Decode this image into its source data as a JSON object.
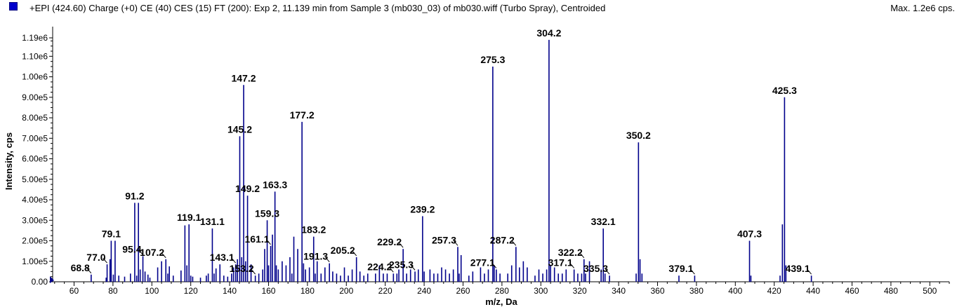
{
  "header": {
    "title": "+EPI (424.60) Charge (+0) CE (40) CES (15) FT (200): Exp 2, 11.139 min from Sample 3 (mb030_03) of mb030.wiff (Turbo Spray), Centroided",
    "max_label": "Max. 1.2e6 cps."
  },
  "chart_data": {
    "type": "bar",
    "color": "#00008b",
    "xlabel": "m/z, Da",
    "ylabel": "Intensity, cps",
    "xlim": [
      49,
      510
    ],
    "ylim": [
      0,
      1190000.0
    ],
    "x_ticks": [
      {
        "value": 60,
        "label": "60"
      },
      {
        "value": 80,
        "label": "80"
      },
      {
        "value": 100,
        "label": "100"
      },
      {
        "value": 120,
        "label": "120"
      },
      {
        "value": 140,
        "label": "140"
      },
      {
        "value": 160,
        "label": "160"
      },
      {
        "value": 180,
        "label": "180"
      },
      {
        "value": 200,
        "label": "200"
      },
      {
        "value": 220,
        "label": "220"
      },
      {
        "value": 240,
        "label": "240"
      },
      {
        "value": 260,
        "label": "260"
      },
      {
        "value": 280,
        "label": "280"
      },
      {
        "value": 300,
        "label": "300"
      },
      {
        "value": 320,
        "label": "320"
      },
      {
        "value": 340,
        "label": "340"
      },
      {
        "value": 360,
        "label": "360"
      },
      {
        "value": 380,
        "label": "380"
      },
      {
        "value": 400,
        "label": "400"
      },
      {
        "value": 420,
        "label": "420"
      },
      {
        "value": 440,
        "label": "440"
      },
      {
        "value": 460,
        "label": "460"
      },
      {
        "value": 480,
        "label": "480"
      },
      {
        "value": 500,
        "label": "500"
      }
    ],
    "y_ticks": [
      {
        "value": 0,
        "label": "0.00"
      },
      {
        "value": 100000,
        "label": "1.00e5"
      },
      {
        "value": 200000,
        "label": "2.00e5"
      },
      {
        "value": 300000,
        "label": "3.00e5"
      },
      {
        "value": 400000,
        "label": "4.00e5"
      },
      {
        "value": 500000,
        "label": "5.00e5"
      },
      {
        "value": 600000,
        "label": "6.00e5"
      },
      {
        "value": 700000,
        "label": "7.00e5"
      },
      {
        "value": 800000,
        "label": "8.00e5"
      },
      {
        "value": 900000,
        "label": "9.00e5"
      },
      {
        "value": 1000000,
        "label": "1.00e6"
      },
      {
        "value": 1100000,
        "label": "1.10e6"
      },
      {
        "value": 1190000,
        "label": "1.19e6"
      }
    ],
    "peaks": [
      [
        68.8,
        35000
      ],
      [
        76.5,
        20000
      ],
      [
        77.0,
        85000
      ],
      [
        78.5,
        110000
      ],
      [
        79.1,
        200000
      ],
      [
        80.2,
        35000
      ],
      [
        81.1,
        200000
      ],
      [
        83.0,
        30000
      ],
      [
        86.0,
        25000
      ],
      [
        89.0,
        40000
      ],
      [
        91.2,
        385000
      ],
      [
        92.2,
        30000
      ],
      [
        93.1,
        385000
      ],
      [
        94.0,
        60000
      ],
      [
        95.4,
        125000
      ],
      [
        96.5,
        50000
      ],
      [
        98.0,
        35000
      ],
      [
        99.0,
        20000
      ],
      [
        103.0,
        70000
      ],
      [
        105.0,
        100000
      ],
      [
        107.2,
        110000
      ],
      [
        108.2,
        40000
      ],
      [
        109.0,
        75000
      ],
      [
        111.0,
        30000
      ],
      [
        115.0,
        55000
      ],
      [
        117.0,
        275000
      ],
      [
        118.0,
        80000
      ],
      [
        119.1,
        280000
      ],
      [
        120.0,
        30000
      ],
      [
        121.0,
        25000
      ],
      [
        125.0,
        20000
      ],
      [
        128.0,
        30000
      ],
      [
        129.0,
        40000
      ],
      [
        131.1,
        260000
      ],
      [
        132.0,
        40000
      ],
      [
        133.0,
        65000
      ],
      [
        135.0,
        85000
      ],
      [
        137.0,
        30000
      ],
      [
        139.0,
        25000
      ],
      [
        141.0,
        40000
      ],
      [
        142.0,
        70000
      ],
      [
        143.1,
        85000
      ],
      [
        144.0,
        110000
      ],
      [
        145.2,
        710000
      ],
      [
        146.2,
        120000
      ],
      [
        147.2,
        960000
      ],
      [
        148.2,
        100000
      ],
      [
        149.2,
        420000
      ],
      [
        151.0,
        85000
      ],
      [
        153.2,
        30000
      ],
      [
        155.0,
        40000
      ],
      [
        157.0,
        60000
      ],
      [
        158.0,
        160000
      ],
      [
        159.3,
        300000
      ],
      [
        160.0,
        80000
      ],
      [
        161.1,
        175000
      ],
      [
        162.0,
        230000
      ],
      [
        163.3,
        440000
      ],
      [
        164.0,
        80000
      ],
      [
        165.0,
        60000
      ],
      [
        167.0,
        100000
      ],
      [
        169.0,
        80000
      ],
      [
        171.0,
        120000
      ],
      [
        172.0,
        40000
      ],
      [
        173.0,
        220000
      ],
      [
        175.0,
        160000
      ],
      [
        177.2,
        780000
      ],
      [
        178.0,
        90000
      ],
      [
        179.0,
        60000
      ],
      [
        181.0,
        70000
      ],
      [
        183.2,
        220000
      ],
      [
        184.0,
        40000
      ],
      [
        185.0,
        100000
      ],
      [
        187.0,
        40000
      ],
      [
        189.0,
        70000
      ],
      [
        191.3,
        90000
      ],
      [
        193.0,
        50000
      ],
      [
        195.0,
        40000
      ],
      [
        197.0,
        30000
      ],
      [
        199.0,
        70000
      ],
      [
        201.0,
        30000
      ],
      [
        203.0,
        60000
      ],
      [
        205.2,
        120000
      ],
      [
        207.0,
        50000
      ],
      [
        209.0,
        30000
      ],
      [
        211.0,
        40000
      ],
      [
        215.0,
        40000
      ],
      [
        217.0,
        80000
      ],
      [
        219.0,
        40000
      ],
      [
        221.0,
        40000
      ],
      [
        224.2,
        40000
      ],
      [
        226.0,
        40000
      ],
      [
        227.0,
        60000
      ],
      [
        229.2,
        160000
      ],
      [
        231.0,
        40000
      ],
      [
        233.0,
        60000
      ],
      [
        235.3,
        50000
      ],
      [
        237.0,
        60000
      ],
      [
        239.2,
        320000
      ],
      [
        240.0,
        50000
      ],
      [
        243.0,
        60000
      ],
      [
        245.0,
        40000
      ],
      [
        247.0,
        40000
      ],
      [
        249.0,
        70000
      ],
      [
        251.0,
        60000
      ],
      [
        253.0,
        40000
      ],
      [
        255.0,
        60000
      ],
      [
        257.3,
        170000
      ],
      [
        258.0,
        40000
      ],
      [
        259.0,
        130000
      ],
      [
        263.0,
        30000
      ],
      [
        265.0,
        50000
      ],
      [
        269.0,
        70000
      ],
      [
        271.0,
        40000
      ],
      [
        273.0,
        60000
      ],
      [
        275.3,
        1050000
      ],
      [
        276.0,
        80000
      ],
      [
        277.1,
        60000
      ],
      [
        279.0,
        40000
      ],
      [
        283.0,
        40000
      ],
      [
        285.0,
        80000
      ],
      [
        287.2,
        170000
      ],
      [
        289.0,
        70000
      ],
      [
        291.0,
        100000
      ],
      [
        293.0,
        70000
      ],
      [
        297.0,
        30000
      ],
      [
        299.0,
        60000
      ],
      [
        301.0,
        40000
      ],
      [
        303.0,
        60000
      ],
      [
        304.2,
        1180000
      ],
      [
        305.0,
        80000
      ],
      [
        307.0,
        70000
      ],
      [
        309.0,
        40000
      ],
      [
        311.0,
        40000
      ],
      [
        313.0,
        60000
      ],
      [
        317.1,
        60000
      ],
      [
        319.0,
        40000
      ],
      [
        321.0,
        40000
      ],
      [
        322.2,
        110000
      ],
      [
        323.0,
        40000
      ],
      [
        325.0,
        100000
      ],
      [
        331.0,
        60000
      ],
      [
        332.1,
        260000
      ],
      [
        333.0,
        40000
      ],
      [
        335.3,
        30000
      ],
      [
        349.0,
        40000
      ],
      [
        350.2,
        680000
      ],
      [
        351.0,
        110000
      ],
      [
        352.0,
        40000
      ],
      [
        371.0,
        30000
      ],
      [
        379.1,
        30000
      ],
      [
        407.3,
        200000
      ],
      [
        408.0,
        30000
      ],
      [
        423.0,
        30000
      ],
      [
        424.2,
        280000
      ],
      [
        425.3,
        900000
      ],
      [
        426.0,
        80000
      ],
      [
        439.1,
        30000
      ]
    ],
    "labels": [
      {
        "text": "68.8",
        "x": 68.8,
        "y": 35000
      },
      {
        "text": "77.0",
        "x": 77.0,
        "y": 85000
      },
      {
        "text": "79.1",
        "x": 79.1,
        "y": 200000
      },
      {
        "text": "91.2",
        "x": 91.2,
        "y": 385000
      },
      {
        "text": "95.4",
        "x": 95.4,
        "y": 125000
      },
      {
        "text": "107.2",
        "x": 107.2,
        "y": 110000
      },
      {
        "text": "119.1",
        "x": 119.1,
        "y": 280000
      },
      {
        "text": "131.1",
        "x": 131.1,
        "y": 260000
      },
      {
        "text": "143.1",
        "x": 143.1,
        "y": 85000
      },
      {
        "text": "145.2",
        "x": 145.2,
        "y": 710000
      },
      {
        "text": "147.2",
        "x": 147.2,
        "y": 960000
      },
      {
        "text": "149.2",
        "x": 149.2,
        "y": 420000
      },
      {
        "text": "153.2",
        "x": 153.2,
        "y": 30000
      },
      {
        "text": "159.3",
        "x": 159.3,
        "y": 300000
      },
      {
        "text": "161.1",
        "x": 161.1,
        "y": 175000
      },
      {
        "text": "163.3",
        "x": 163.3,
        "y": 440000
      },
      {
        "text": "177.2",
        "x": 177.2,
        "y": 780000
      },
      {
        "text": "183.2",
        "x": 183.2,
        "y": 220000
      },
      {
        "text": "191.3",
        "x": 191.3,
        "y": 90000
      },
      {
        "text": "205.2",
        "x": 205.2,
        "y": 120000
      },
      {
        "text": "224.2",
        "x": 224.2,
        "y": 40000
      },
      {
        "text": "229.2",
        "x": 229.2,
        "y": 160000
      },
      {
        "text": "235.3",
        "x": 235.3,
        "y": 50000
      },
      {
        "text": "239.2",
        "x": 239.2,
        "y": 320000
      },
      {
        "text": "257.3",
        "x": 257.3,
        "y": 170000
      },
      {
        "text": "275.3",
        "x": 275.3,
        "y": 1050000
      },
      {
        "text": "277.1",
        "x": 277.1,
        "y": 60000
      },
      {
        "text": "287.2",
        "x": 287.2,
        "y": 170000
      },
      {
        "text": "304.2",
        "x": 304.2,
        "y": 1180000
      },
      {
        "text": "317.1",
        "x": 317.1,
        "y": 60000
      },
      {
        "text": "322.2",
        "x": 322.2,
        "y": 110000
      },
      {
        "text": "332.1",
        "x": 332.1,
        "y": 260000
      },
      {
        "text": "335.3",
        "x": 335.3,
        "y": 30000
      },
      {
        "text": "350.2",
        "x": 350.2,
        "y": 680000
      },
      {
        "text": "379.1",
        "x": 379.1,
        "y": 30000
      },
      {
        "text": "407.3",
        "x": 407.3,
        "y": 200000
      },
      {
        "text": "425.3",
        "x": 425.3,
        "y": 900000
      },
      {
        "text": "439.1",
        "x": 439.1,
        "y": 30000
      }
    ]
  }
}
